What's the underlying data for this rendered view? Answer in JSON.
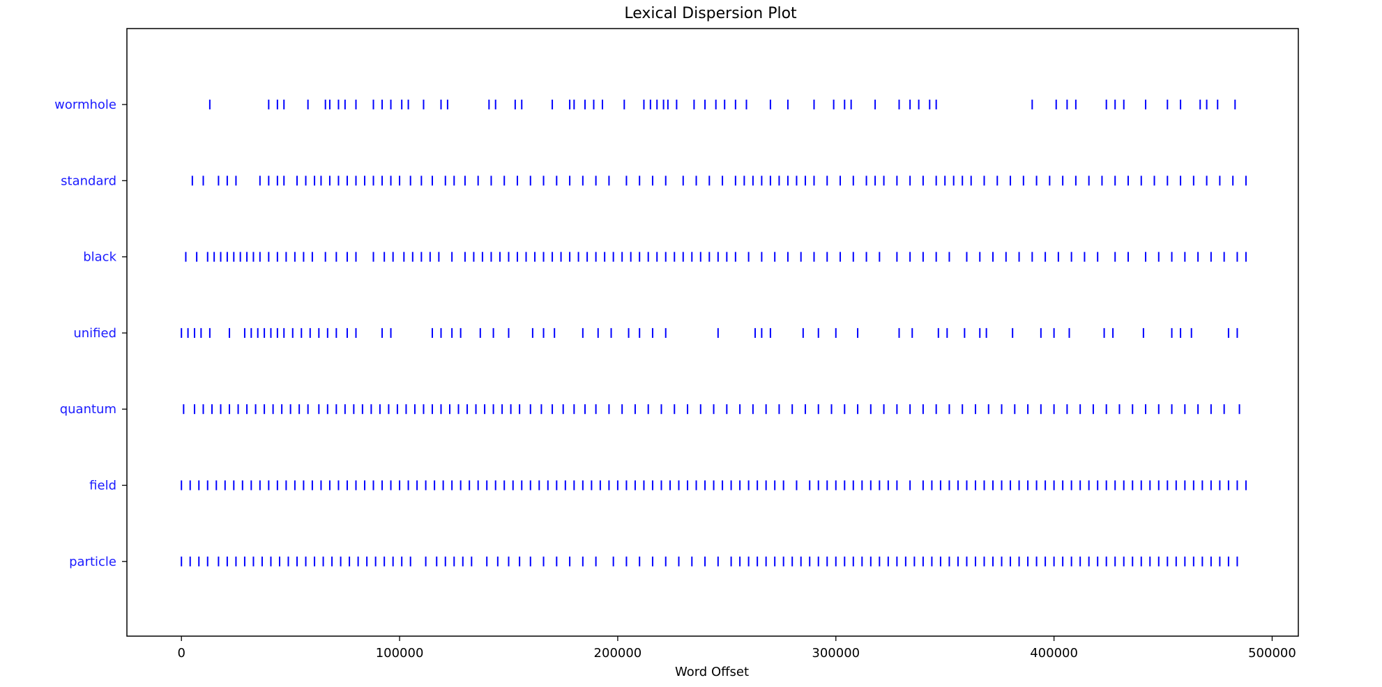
{
  "chart_data": {
    "type": "scatter",
    "title": "Lexical Dispersion Plot",
    "xlabel": "Word Offset",
    "ylabel": "",
    "xlim": [
      -25000,
      512000
    ],
    "x_ticks": [
      0,
      100000,
      200000,
      300000,
      400000,
      500000
    ],
    "x_tick_labels": [
      "0",
      "100000",
      "200000",
      "300000",
      "400000",
      "500000"
    ],
    "categories": [
      "wormhole",
      "standard",
      "black",
      "unified",
      "quantum",
      "field",
      "particle"
    ],
    "grid": false,
    "legend": "none",
    "marker": "|",
    "colors": {
      "marks": "#0000ff",
      "tick_labels_y": "#1a1aff",
      "axes": "#000000"
    },
    "series": [
      {
        "label": "wormhole",
        "x": [
          13000,
          40000,
          44000,
          47000,
          58000,
          66000,
          68000,
          72000,
          75000,
          80000,
          88000,
          92000,
          96000,
          101000,
          104000,
          111000,
          119000,
          122000,
          141000,
          144000,
          153000,
          156000,
          170000,
          178000,
          180000,
          185000,
          189000,
          193000,
          203000,
          212000,
          215000,
          218000,
          221000,
          223000,
          227000,
          235000,
          240000,
          245000,
          249000,
          254000,
          259000,
          270000,
          278000,
          290000,
          299000,
          304000,
          307000,
          318000,
          329000,
          334000,
          338000,
          343000,
          346000,
          390000,
          401000,
          406000,
          410000,
          424000,
          428000,
          432000,
          442000,
          452000,
          458000,
          467000,
          470000,
          475000,
          483000
        ]
      },
      {
        "label": "standard",
        "x": [
          5000,
          10000,
          17000,
          21000,
          25000,
          36000,
          40000,
          44000,
          47000,
          53000,
          57000,
          61000,
          64000,
          68000,
          72000,
          76000,
          80000,
          84000,
          88000,
          92000,
          96000,
          100000,
          105000,
          110000,
          115000,
          121000,
          125000,
          130000,
          136000,
          142000,
          148000,
          154000,
          160000,
          166000,
          172000,
          178000,
          184000,
          190000,
          196000,
          204000,
          210000,
          216000,
          222000,
          230000,
          236000,
          242000,
          248000,
          254000,
          258000,
          262000,
          266000,
          270000,
          274000,
          278000,
          282000,
          286000,
          290000,
          296000,
          302000,
          308000,
          314000,
          318000,
          322000,
          328000,
          334000,
          340000,
          346000,
          350000,
          354000,
          358000,
          362000,
          368000,
          374000,
          380000,
          386000,
          392000,
          398000,
          404000,
          410000,
          416000,
          422000,
          428000,
          434000,
          440000,
          446000,
          452000,
          458000,
          464000,
          470000,
          476000,
          482000,
          488000
        ]
      },
      {
        "label": "black",
        "x": [
          2000,
          7000,
          12000,
          15000,
          18000,
          21000,
          24000,
          27000,
          30000,
          33000,
          36000,
          40000,
          44000,
          48000,
          52000,
          56000,
          60000,
          66000,
          71000,
          76000,
          80000,
          88000,
          93000,
          97000,
          102000,
          106000,
          110000,
          114000,
          118000,
          124000,
          130000,
          134000,
          138000,
          142000,
          146000,
          150000,
          154000,
          158000,
          162000,
          166000,
          170000,
          174000,
          178000,
          182000,
          186000,
          190000,
          194000,
          198000,
          202000,
          206000,
          210000,
          214000,
          218000,
          222000,
          226000,
          230000,
          234000,
          238000,
          242000,
          246000,
          250000,
          254000,
          260000,
          266000,
          272000,
          278000,
          284000,
          290000,
          296000,
          302000,
          308000,
          314000,
          320000,
          328000,
          334000,
          340000,
          346000,
          352000,
          360000,
          366000,
          372000,
          378000,
          384000,
          390000,
          396000,
          402000,
          408000,
          414000,
          420000,
          428000,
          434000,
          442000,
          448000,
          454000,
          460000,
          466000,
          472000,
          478000,
          484000,
          488000
        ]
      },
      {
        "label": "unified",
        "x": [
          0,
          3000,
          6000,
          9000,
          13000,
          22000,
          29000,
          32000,
          35000,
          38000,
          41000,
          44000,
          47000,
          51000,
          55000,
          59000,
          63000,
          67000,
          71000,
          76000,
          80000,
          92000,
          96000,
          115000,
          119000,
          124000,
          128000,
          137000,
          143000,
          150000,
          161000,
          166000,
          171000,
          184000,
          191000,
          197000,
          205000,
          210000,
          216000,
          222000,
          246000,
          263000,
          266000,
          270000,
          285000,
          292000,
          300000,
          310000,
          329000,
          335000,
          347000,
          351000,
          359000,
          366000,
          369000,
          381000,
          394000,
          400000,
          407000,
          423000,
          427000,
          441000,
          454000,
          458000,
          463000,
          480000,
          484000
        ]
      },
      {
        "label": "quantum",
        "x": [
          1000,
          6000,
          10000,
          14000,
          18000,
          22000,
          26000,
          30000,
          34000,
          38000,
          42000,
          46000,
          50000,
          54000,
          58000,
          63000,
          67000,
          71000,
          75000,
          79000,
          83000,
          87000,
          91000,
          95000,
          99000,
          103000,
          107000,
          111000,
          115000,
          119000,
          123000,
          127000,
          131000,
          135000,
          139000,
          143000,
          147000,
          151000,
          155000,
          160000,
          165000,
          170000,
          175000,
          180000,
          185000,
          190000,
          196000,
          202000,
          208000,
          214000,
          220000,
          226000,
          232000,
          238000,
          244000,
          250000,
          256000,
          262000,
          268000,
          274000,
          280000,
          286000,
          292000,
          298000,
          304000,
          310000,
          316000,
          322000,
          328000,
          334000,
          340000,
          346000,
          352000,
          358000,
          364000,
          370000,
          376000,
          382000,
          388000,
          394000,
          400000,
          406000,
          412000,
          418000,
          424000,
          430000,
          436000,
          442000,
          448000,
          454000,
          460000,
          466000,
          472000,
          478000,
          485000
        ]
      },
      {
        "label": "field",
        "x": [
          0,
          4000,
          8000,
          12000,
          16000,
          20000,
          24000,
          28000,
          32000,
          36000,
          40000,
          44000,
          48000,
          52000,
          56000,
          60000,
          64000,
          68000,
          72000,
          76000,
          80000,
          84000,
          88000,
          92000,
          96000,
          100000,
          104000,
          108000,
          112000,
          116000,
          120000,
          124000,
          128000,
          132000,
          136000,
          140000,
          144000,
          148000,
          152000,
          156000,
          160000,
          164000,
          168000,
          172000,
          176000,
          180000,
          184000,
          188000,
          192000,
          196000,
          200000,
          204000,
          208000,
          212000,
          216000,
          220000,
          224000,
          228000,
          232000,
          236000,
          240000,
          244000,
          248000,
          252000,
          256000,
          260000,
          264000,
          268000,
          272000,
          276000,
          282000,
          288000,
          292000,
          296000,
          300000,
          304000,
          308000,
          312000,
          316000,
          320000,
          324000,
          328000,
          334000,
          340000,
          344000,
          348000,
          352000,
          356000,
          360000,
          364000,
          368000,
          372000,
          376000,
          380000,
          384000,
          388000,
          392000,
          396000,
          400000,
          404000,
          408000,
          412000,
          416000,
          420000,
          424000,
          428000,
          432000,
          436000,
          440000,
          444000,
          448000,
          452000,
          456000,
          460000,
          464000,
          468000,
          472000,
          476000,
          480000,
          484000,
          488000
        ]
      },
      {
        "label": "particle",
        "x": [
          0,
          4000,
          8000,
          12000,
          17000,
          21000,
          25000,
          29000,
          33000,
          37000,
          41000,
          45000,
          49000,
          53000,
          57000,
          61000,
          65000,
          69000,
          73000,
          77000,
          81000,
          85000,
          89000,
          93000,
          97000,
          101000,
          105000,
          112000,
          117000,
          121000,
          125000,
          129000,
          133000,
          140000,
          145000,
          150000,
          155000,
          160000,
          166000,
          172000,
          178000,
          184000,
          190000,
          198000,
          204000,
          210000,
          216000,
          222000,
          228000,
          234000,
          240000,
          246000,
          252000,
          256000,
          260000,
          264000,
          268000,
          272000,
          276000,
          280000,
          284000,
          288000,
          292000,
          296000,
          300000,
          304000,
          308000,
          312000,
          316000,
          320000,
          324000,
          328000,
          332000,
          336000,
          340000,
          344000,
          348000,
          352000,
          356000,
          360000,
          364000,
          368000,
          372000,
          376000,
          380000,
          384000,
          388000,
          392000,
          396000,
          400000,
          404000,
          408000,
          412000,
          416000,
          420000,
          424000,
          428000,
          432000,
          436000,
          440000,
          444000,
          448000,
          452000,
          456000,
          460000,
          464000,
          468000,
          472000,
          476000,
          480000,
          484000
        ]
      }
    ]
  }
}
